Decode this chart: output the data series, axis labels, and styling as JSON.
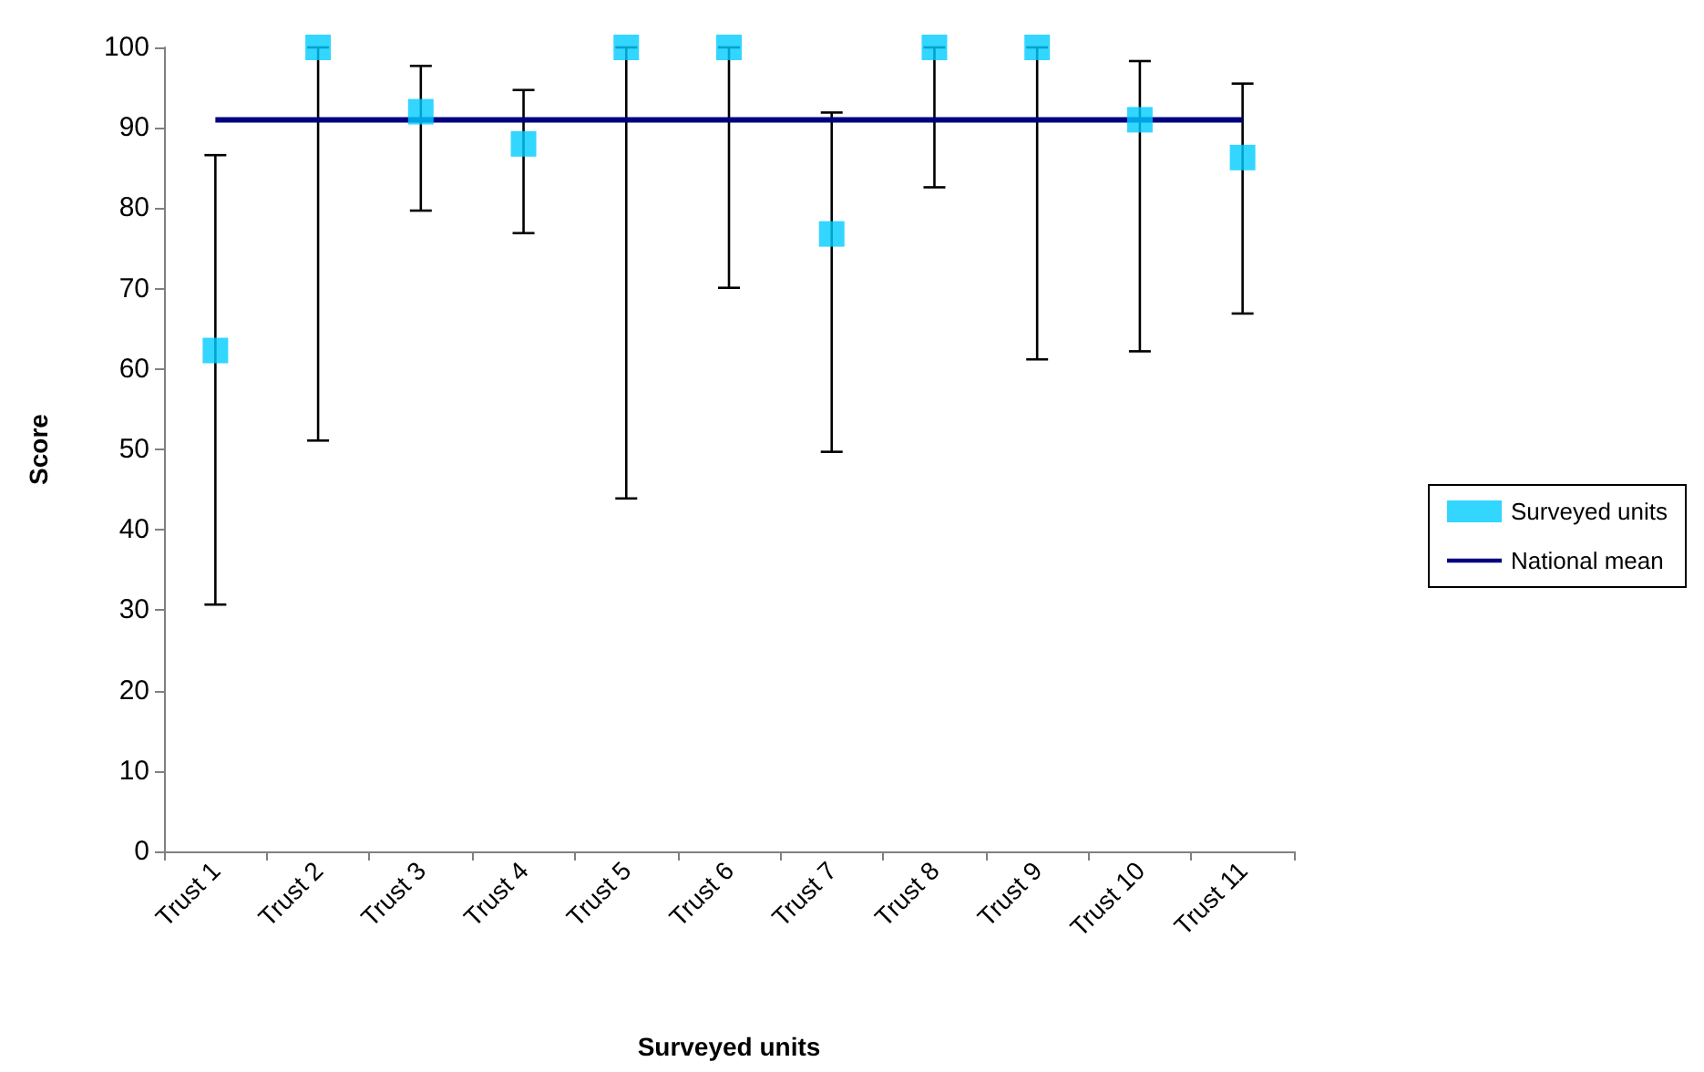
{
  "chart_data": {
    "type": "scatter",
    "xlabel": "Surveyed units",
    "ylabel": "Score",
    "categories": [
      "Trust 1",
      "Trust 2",
      "Trust 3",
      "Trust 4",
      "Trust 5",
      "Trust 6",
      "Trust 7",
      "Trust 8",
      "Trust 9",
      "Trust 10",
      "Trust 11"
    ],
    "series": [
      {
        "name": "Surveyed units",
        "color": "#00ccff",
        "marker": "square",
        "values": [
          62.3,
          100,
          92,
          88,
          100,
          100,
          76.8,
          100,
          100,
          91,
          86.3
        ],
        "errors": [
          [
            30.7,
            86.6
          ],
          [
            51.1,
            100
          ],
          [
            79.7,
            97.7
          ],
          [
            76.9,
            94.7
          ],
          [
            43.9,
            100
          ],
          [
            70.1,
            100
          ],
          [
            49.7,
            91.9
          ],
          [
            82.6,
            100
          ],
          [
            61.2,
            100
          ],
          [
            62.2,
            98.3
          ],
          [
            66.9,
            95.5
          ]
        ]
      },
      {
        "name": "National mean",
        "type": "line",
        "color": "#000080",
        "marker": "none",
        "line_style": "solid",
        "values": [
          91,
          91,
          91,
          91,
          91,
          91,
          91,
          91,
          91,
          91,
          91
        ]
      }
    ],
    "ylim": [
      0,
      100
    ],
    "yticks": [
      0,
      10,
      20,
      30,
      40,
      50,
      60,
      70,
      80,
      90,
      100
    ],
    "grid": false,
    "legend": "right"
  }
}
